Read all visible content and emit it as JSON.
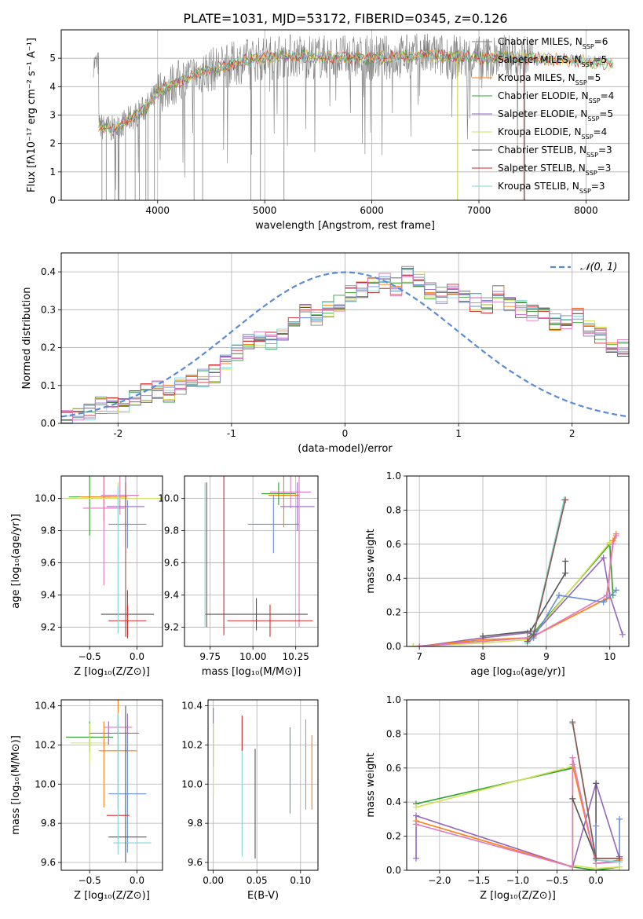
{
  "figure_title": "PLATE=1031, MJD=53172, FIBERID=0345, z=0.126",
  "model_colors": [
    "#7f7f7f",
    "#9aa8ad",
    "#ff7f0e",
    "#2ca02c",
    "#9467bd",
    "#d4e157",
    "#555555",
    "#d62728",
    "#7fd6d6",
    "#6a8fd8",
    "#e377c2",
    "#8c564b"
  ],
  "chart_data": [
    {
      "id": "spectrum",
      "type": "line",
      "title": "PLATE=1031, MJD=53172, FIBERID=0345, z=0.126",
      "xlabel": "wavelength [Angstrom, rest frame]",
      "ylabel": "Flux [fλ10⁻¹⁷ erg cm⁻² s⁻¹ A⁻¹]",
      "xlim": [
        3100,
        8400
      ],
      "ylim": [
        0,
        6
      ],
      "xticks": [
        4000,
        5000,
        6000,
        7000,
        8000
      ],
      "yticks": [
        0,
        1,
        2,
        3,
        4,
        5
      ],
      "legend_position": "top-right",
      "legend": [
        "Chabrier MILES, N_SSP=6",
        "Salpeter MILES, N_SSP=5",
        "Kroupa MILES, N_SSP=5",
        "Chabrier ELODIE, N_SSP=4",
        "Salpeter ELODIE, N_SSP=5",
        "Kroupa ELODIE, N_SSP=4",
        "Chabrier STELIB, N_SSP=3",
        "Salpeter STELIB, N_SSP=3",
        "Kroupa STELIB, N_SSP=3"
      ],
      "continuum": {
        "x": [
          3450,
          3600,
          3750,
          3900,
          4000,
          4200,
          4400,
          4600,
          4800,
          5000,
          5200,
          5500,
          6000,
          6500,
          7000,
          7300,
          7500,
          8000,
          8250
        ],
        "y": [
          2.6,
          2.5,
          2.9,
          3.3,
          3.8,
          4.2,
          4.5,
          4.7,
          4.9,
          5.0,
          5.1,
          5.05,
          5.0,
          5.1,
          5.0,
          5.05,
          5.0,
          4.9,
          4.8
        ]
      },
      "data_range_x": [
        3400,
        7500
      ],
      "deep_dips_x": [
        3480,
        3520,
        3600,
        3640,
        3700,
        3790,
        3830,
        3890,
        3910,
        3970,
        4340,
        4420,
        4870,
        4960,
        5180,
        6800,
        7430
      ]
    },
    {
      "id": "residuals",
      "type": "step",
      "xlabel": "(data-model)/error",
      "ylabel": "Normed distribution",
      "xlim": [
        -2.5,
        2.5
      ],
      "ylim": [
        0,
        0.45
      ],
      "xticks": [
        -2,
        -1,
        0,
        1,
        2
      ],
      "yticks": [
        0.0,
        0.1,
        0.2,
        0.3,
        0.4
      ],
      "legend": [
        "𝒩(0, 1)"
      ],
      "legend_position": "top-right",
      "bin_width": 0.1,
      "bin_start": -2.5,
      "base_hist": [
        0.02,
        0.03,
        0.03,
        0.05,
        0.05,
        0.05,
        0.07,
        0.08,
        0.09,
        0.08,
        0.1,
        0.11,
        0.12,
        0.13,
        0.16,
        0.19,
        0.21,
        0.23,
        0.22,
        0.24,
        0.26,
        0.29,
        0.28,
        0.3,
        0.32,
        0.34,
        0.35,
        0.37,
        0.38,
        0.36,
        0.39,
        0.38,
        0.35,
        0.34,
        0.35,
        0.33,
        0.32,
        0.31,
        0.34,
        0.32,
        0.3,
        0.29,
        0.3,
        0.27,
        0.26,
        0.28,
        0.25,
        0.23,
        0.21,
        0.2,
        0.18,
        0.16,
        0.14,
        0.13,
        0.11,
        0.1,
        0.09,
        0.07,
        0.06,
        0.05,
        0.05,
        0.04,
        0.04,
        0.03,
        0.03,
        0.03,
        0.02,
        0.02,
        0.02,
        0.01
      ]
    },
    {
      "id": "age_vs_Z",
      "type": "errorbar",
      "xlabel": "Z [log₁₀(Z/Z⊙)]",
      "ylabel": "age  [log₁₀(age/yr)]",
      "xlim": [
        -0.8,
        0.27
      ],
      "ylim": [
        9.08,
        10.14
      ],
      "xticks": [
        -0.5,
        0.0
      ],
      "xticklabels": [
        "−0.5",
        "0.0"
      ],
      "yticks": [
        9.2,
        9.4,
        9.6,
        9.8,
        10.0
      ],
      "points": [
        {
          "x": -0.5,
          "y": 10.01,
          "xerr": 0.22,
          "yerr": 0.24,
          "c": 3
        },
        {
          "x": -0.35,
          "y": 10.01,
          "xerr": 0.25,
          "yerr": 0.15,
          "c": 2
        },
        {
          "x": -0.18,
          "y": 10.02,
          "xerr": 0.2,
          "yerr": 0.12,
          "c": 10
        },
        {
          "x": -0.35,
          "y": 9.94,
          "xerr": 0.22,
          "yerr": 0.48,
          "c": 10
        },
        {
          "x": -0.12,
          "y": 9.95,
          "xerr": 0.2,
          "yerr": 0.25,
          "c": 4
        },
        {
          "x": -0.1,
          "y": 9.84,
          "xerr": 0.2,
          "yerr": 0.15,
          "c": 9
        },
        {
          "x": -0.2,
          "y": 10.0,
          "xerr": 0.55,
          "yerr": 0.1,
          "c": 5
        },
        {
          "x": -0.1,
          "y": 9.28,
          "xerr": 0.28,
          "yerr": 0.15,
          "c": 6
        },
        {
          "x": -0.1,
          "y": 9.24,
          "xerr": 0.2,
          "yerr": 0.1,
          "c": 7
        },
        {
          "x": -0.2,
          "y": 9.62,
          "xerr": 0.0,
          "yerr": 0.46,
          "c": 8
        },
        {
          "x": -0.12,
          "y": 9.62,
          "xerr": 0.0,
          "yerr": 0.48,
          "c": 11
        }
      ]
    },
    {
      "id": "age_vs_mass",
      "type": "errorbar",
      "xlabel": "mass [log₁₀(M/M⊙)]",
      "xlim": [
        9.6,
        10.38
      ],
      "ylim": [
        9.08,
        10.14
      ],
      "xticks": [
        9.75,
        10.0,
        10.25
      ],
      "xticklabels": [
        "9.75",
        "10.00",
        "10.25"
      ],
      "yticks": [
        9.2,
        9.4,
        9.6,
        9.8,
        10.0
      ],
      "points": [
        {
          "x": 10.15,
          "y": 10.03,
          "xerr": 0.1,
          "yerr": 0.07,
          "c": 3
        },
        {
          "x": 10.18,
          "y": 10.02,
          "xerr": 0.09,
          "yerr": 0.2,
          "c": 2
        },
        {
          "x": 10.22,
          "y": 10.04,
          "xerr": 0.12,
          "yerr": 0.1,
          "c": 10
        },
        {
          "x": 10.26,
          "y": 9.95,
          "xerr": 0.1,
          "yerr": 0.15,
          "c": 4
        },
        {
          "x": 10.12,
          "y": 9.84,
          "xerr": 0.15,
          "yerr": 0.18,
          "c": 9
        },
        {
          "x": 10.27,
          "y": 9.7,
          "xerr": 0.0,
          "yerr": 0.5,
          "c": 10
        },
        {
          "x": 10.02,
          "y": 9.28,
          "xerr": 0.3,
          "yerr": 0.1,
          "c": 6
        },
        {
          "x": 10.1,
          "y": 9.24,
          "xerr": 0.25,
          "yerr": 0.1,
          "c": 7
        },
        {
          "x": 9.83,
          "y": 9.65,
          "xerr": 0.0,
          "yerr": 0.5,
          "c": 7
        },
        {
          "x": 9.72,
          "y": 9.65,
          "xerr": 0.0,
          "yerr": 0.45,
          "c": 8
        },
        {
          "x": 9.73,
          "y": 9.65,
          "xerr": 0.0,
          "yerr": 0.45,
          "c": 11
        }
      ]
    },
    {
      "id": "weight_vs_age",
      "type": "line",
      "xlabel": "age  [log₁₀(age/yr)]",
      "ylabel": "mass weight",
      "xlim": [
        6.8,
        10.3
      ],
      "ylim": [
        0,
        1
      ],
      "xticks": [
        7,
        8,
        9,
        10
      ],
      "yticks": [
        0.0,
        0.2,
        0.4,
        0.6,
        0.8,
        1.0
      ],
      "series": [
        {
          "c": 3,
          "x": [
            6.9,
            8.0,
            8.7,
            8.8,
            10.0,
            10.05
          ],
          "y": [
            0.0,
            0.03,
            0.05,
            0.08,
            0.6,
            0.3
          ]
        },
        {
          "c": 5,
          "x": [
            6.9,
            8.0,
            8.7,
            8.8,
            10.0
          ],
          "y": [
            0.0,
            0.02,
            0.04,
            0.07,
            0.61
          ]
        },
        {
          "c": 4,
          "x": [
            7.0,
            8.0,
            8.7,
            8.8,
            9.9,
            10.0,
            10.2
          ],
          "y": [
            0.0,
            0.05,
            0.08,
            0.07,
            0.52,
            0.3,
            0.07
          ]
        },
        {
          "c": 2,
          "x": [
            7.0,
            8.0,
            8.7,
            8.8,
            9.95,
            10.05,
            10.1
          ],
          "y": [
            0.0,
            0.04,
            0.05,
            0.06,
            0.28,
            0.62,
            0.66
          ]
        },
        {
          "c": 10,
          "x": [
            7.0,
            8.0,
            8.7,
            8.8,
            9.95,
            10.05,
            10.1
          ],
          "y": [
            0.0,
            0.03,
            0.05,
            0.06,
            0.3,
            0.6,
            0.65
          ]
        },
        {
          "c": 6,
          "x": [
            8.0,
            8.75,
            9.3,
            9.3
          ],
          "y": [
            0.06,
            0.09,
            0.43,
            0.5
          ]
        },
        {
          "c": 9,
          "x": [
            8.7,
            8.8,
            9.2,
            9.9,
            10.1
          ],
          "y": [
            0.02,
            0.05,
            0.3,
            0.26,
            0.33
          ]
        },
        {
          "c": 8,
          "x": [
            8.7,
            8.8,
            9.28
          ],
          "y": [
            0.02,
            0.08,
            0.86
          ]
        },
        {
          "c": 11,
          "x": [
            8.7,
            8.8,
            9.3
          ],
          "y": [
            0.03,
            0.07,
            0.86
          ]
        }
      ]
    },
    {
      "id": "mass_vs_Z",
      "type": "errorbar",
      "xlabel": "Z [log₁₀(Z/Z⊙)]",
      "ylabel": "mass [log₁₀(M/M⊙)]",
      "xlim": [
        -0.8,
        0.27
      ],
      "ylim": [
        9.56,
        10.43
      ],
      "xticks": [
        -0.5,
        0.0
      ],
      "xticklabels": [
        "−0.5",
        "0.0"
      ],
      "yticks": [
        9.6,
        9.8,
        10.0,
        10.2,
        10.4
      ],
      "points": [
        {
          "x": -0.5,
          "y": 10.24,
          "xerr": 0.25,
          "yerr": 0.08,
          "c": 3
        },
        {
          "x": -0.5,
          "y": 10.21,
          "xerr": 0.2,
          "yerr": 0.1,
          "c": 5
        },
        {
          "x": -0.3,
          "y": 10.26,
          "xerr": 0.2,
          "yerr": 0.06,
          "c": 4
        },
        {
          "x": -0.2,
          "y": 10.29,
          "xerr": 0.15,
          "yerr": 0.06,
          "c": 10
        },
        {
          "x": -0.2,
          "y": 10.17,
          "xerr": 0.2,
          "yerr": 0.3,
          "c": 2
        },
        {
          "x": -0.1,
          "y": 10.26,
          "xerr": 0.12,
          "yerr": 0.1,
          "c": 4
        },
        {
          "x": -0.1,
          "y": 9.95,
          "xerr": 0.2,
          "yerr": 0.3,
          "c": 9
        },
        {
          "x": -0.2,
          "y": 9.84,
          "xerr": 0.12,
          "yerr": 0.0,
          "c": 7
        },
        {
          "x": -0.1,
          "y": 9.73,
          "xerr": 0.2,
          "yerr": 0.0,
          "c": 6
        },
        {
          "x": -0.05,
          "y": 9.7,
          "xerr": 0.2,
          "yerr": 0.0,
          "c": 8
        },
        {
          "x": -0.2,
          "y": 10.0,
          "xerr": 0.0,
          "yerr": 0.36,
          "c": 8
        },
        {
          "x": -0.12,
          "y": 10.0,
          "xerr": 0.0,
          "yerr": 0.4,
          "c": 6
        },
        {
          "x": -0.35,
          "y": 10.1,
          "xerr": 0.0,
          "yerr": 0.22,
          "c": 2
        }
      ]
    },
    {
      "id": "mass_vs_ebv",
      "type": "errorbar",
      "xlabel": "E(B-V)",
      "xlim": [
        -0.006,
        0.12
      ],
      "ylim": [
        9.56,
        10.43
      ],
      "xticks": [
        0.0,
        0.05,
        0.1
      ],
      "xticklabels": [
        "0.00",
        "0.05",
        "0.10"
      ],
      "yticks": [
        9.6,
        9.8,
        10.0,
        10.2,
        10.4
      ],
      "points": [
        {
          "x": 0.0,
          "y": 10.24,
          "xerr": 0,
          "yerr": 0.15,
          "c": 4
        },
        {
          "x": 0.0,
          "y": 10.13,
          "xerr": 0,
          "yerr": 0.18,
          "c": 5
        },
        {
          "x": 0.033,
          "y": 9.98,
          "xerr": 0,
          "yerr": 0.35,
          "c": 8
        },
        {
          "x": 0.033,
          "y": 10.26,
          "xerr": 0,
          "yerr": 0.09,
          "c": 7
        },
        {
          "x": 0.048,
          "y": 9.9,
          "xerr": 0,
          "yerr": 0.28,
          "c": 6
        },
        {
          "x": 0.088,
          "y": 10.07,
          "xerr": 0,
          "yerr": 0.22,
          "c": 9
        },
        {
          "x": 0.106,
          "y": 10.1,
          "xerr": 0,
          "yerr": 0.23,
          "c": 10
        },
        {
          "x": 0.113,
          "y": 10.06,
          "xerr": 0,
          "yerr": 0.19,
          "c": 2
        }
      ]
    },
    {
      "id": "weight_vs_Z",
      "type": "line",
      "xlabel": "Z [log₁₀(Z/Z⊙)]",
      "ylabel": "mass weight",
      "xlim": [
        -2.42,
        0.42
      ],
      "ylim": [
        0,
        1
      ],
      "xticks": [
        -2.0,
        -1.5,
        -1.0,
        -0.5,
        0.0
      ],
      "xticklabels": [
        "−2.0",
        "−1.5",
        "−1.0",
        "−0.5",
        "0.0"
      ],
      "yticks": [
        0.0,
        0.2,
        0.4,
        0.6,
        0.8,
        1.0
      ],
      "series": [
        {
          "c": 3,
          "x": [
            -2.3,
            -0.3,
            -0.3,
            0.0,
            0.3
          ],
          "y": [
            0.39,
            0.6,
            0.02,
            0.0,
            0.02
          ]
        },
        {
          "c": 5,
          "x": [
            -2.3,
            -0.3,
            -0.3,
            0.0,
            0.3
          ],
          "y": [
            0.37,
            0.61,
            0.03,
            0.01,
            0.02
          ]
        },
        {
          "c": 4,
          "x": [
            -2.3,
            -2.3,
            -0.3,
            0.0,
            0.3,
            0.3
          ],
          "y": [
            0.07,
            0.32,
            0.02,
            0.51,
            0.07,
            0.08
          ]
        },
        {
          "c": 2,
          "x": [
            -2.3,
            -0.3,
            -0.3,
            0.0,
            0.3
          ],
          "y": [
            0.29,
            0.02,
            0.62,
            0.04,
            0.06
          ]
        },
        {
          "c": 10,
          "x": [
            -2.3,
            -0.3,
            -0.3,
            0.0,
            0.3
          ],
          "y": [
            0.27,
            0.02,
            0.66,
            0.04,
            0.05
          ]
        },
        {
          "c": 6,
          "x": [
            -0.3,
            0.0,
            0.0
          ],
          "y": [
            0.42,
            0.07,
            0.51
          ]
        },
        {
          "c": 9,
          "x": [
            0.0,
            0.0,
            0.3,
            0.3
          ],
          "y": [
            0.26,
            0.07,
            0.07,
            0.3
          ]
        },
        {
          "c": 8,
          "x": [
            -0.3,
            0.0,
            0.3
          ],
          "y": [
            0.86,
            0.06,
            0.05
          ]
        },
        {
          "c": 11,
          "x": [
            -0.3,
            0.0,
            0.3
          ],
          "y": [
            0.87,
            0.07,
            0.07
          ]
        }
      ]
    }
  ]
}
